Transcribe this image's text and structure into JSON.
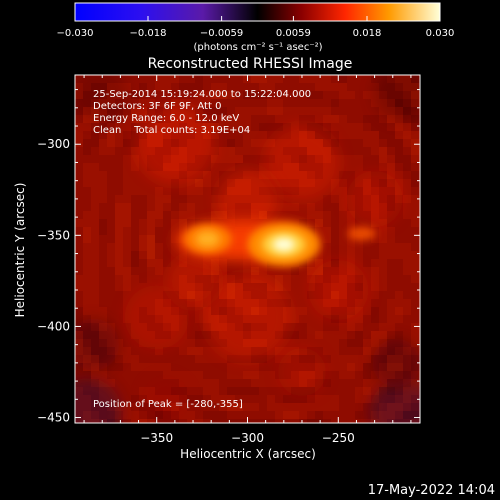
{
  "chart_data": {
    "type": "heatmap",
    "title": "Reconstructed RHESSI Image",
    "xlabel": "Heliocentric X (arcsec)",
    "ylabel": "Heliocentric Y (arcsec)",
    "xlim": [
      -395,
      -205
    ],
    "ylim": [
      -453,
      -262
    ],
    "xticks": [
      -350,
      -300,
      -250
    ],
    "yticks": [
      -300,
      -350,
      -400,
      -450
    ],
    "xtick_labels": [
      "−350",
      "−300",
      "−250"
    ],
    "ytick_labels": [
      "−300",
      "−350",
      "−400",
      "−450"
    ],
    "colorbar": {
      "range": [
        -0.03,
        0.03
      ],
      "ticks": [
        -0.03,
        -0.018,
        -0.0059,
        0.0059,
        0.018,
        0.03
      ],
      "tick_labels": [
        "−0.030",
        "−0.018",
        "−0.0059",
        "0.0059",
        "0.018",
        "0.030"
      ],
      "unit_label": "(photons cm⁻² s⁻¹ asec⁻²)"
    },
    "annotations": [
      "25-Sep-2014 15:19:24.000 to 15:22:04.000",
      "Detectors: 3F 6F 9F, Att 0",
      "Energy Range: 6.0 - 12.0 keV",
      "Clean    Total counts: 3.19E+04"
    ],
    "peak_label": "Position of Peak = [-280,-355]",
    "peak": [
      -280,
      -355
    ],
    "secondary_source": [
      -322,
      -352
    ],
    "date_stamp": "17-May-2022 14:04"
  }
}
